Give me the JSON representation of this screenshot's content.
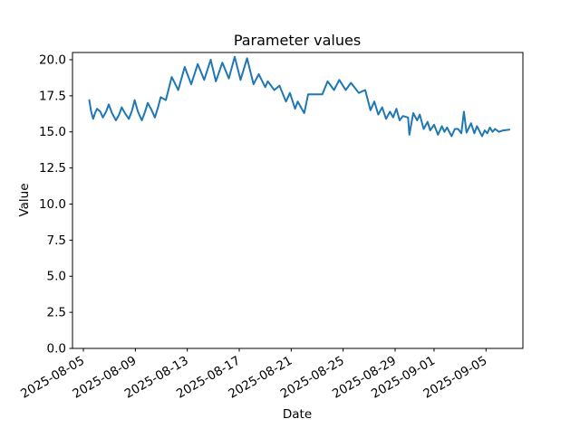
{
  "chart": {
    "title": "Parameter values",
    "xlabel": "Date",
    "ylabel": "Value"
  },
  "chart_data": {
    "type": "line",
    "title": "Parameter values",
    "xlabel": "Date",
    "ylabel": "Value",
    "legend": "none",
    "grid": false,
    "line_color": "#1f77b4",
    "x_unit": "days since 2025-08-05",
    "xlim_days": [
      -0.84,
      33.84
    ],
    "ylim": [
      0,
      20.5
    ],
    "x_ticks": [
      {
        "t": 0,
        "label": "2025-08-05"
      },
      {
        "t": 4,
        "label": "2025-08-09"
      },
      {
        "t": 8,
        "label": "2025-08-13"
      },
      {
        "t": 12,
        "label": "2025-08-17"
      },
      {
        "t": 16,
        "label": "2025-08-21"
      },
      {
        "t": 20,
        "label": "2025-08-25"
      },
      {
        "t": 24,
        "label": "2025-08-29"
      },
      {
        "t": 27,
        "label": "2025-09-01"
      },
      {
        "t": 31,
        "label": "2025-09-05"
      }
    ],
    "y_ticks": [
      {
        "v": 0,
        "label": "0.0"
      },
      {
        "v": 2.5,
        "label": "2.5"
      },
      {
        "v": 5,
        "label": "5.0"
      },
      {
        "v": 7.5,
        "label": "7.5"
      },
      {
        "v": 10,
        "label": "10.0"
      },
      {
        "v": 12.5,
        "label": "12.5"
      },
      {
        "v": 15,
        "label": "15.0"
      },
      {
        "v": 17.5,
        "label": "17.5"
      },
      {
        "v": 20,
        "label": "20.0"
      }
    ],
    "points": [
      [
        0.45,
        17.2
      ],
      [
        0.6,
        16.4
      ],
      [
        0.75,
        15.9
      ],
      [
        0.9,
        16.3
      ],
      [
        1.05,
        16.6
      ],
      [
        1.3,
        16.4
      ],
      [
        1.5,
        16.0
      ],
      [
        1.75,
        16.4
      ],
      [
        1.95,
        16.9
      ],
      [
        2.2,
        16.3
      ],
      [
        2.5,
        15.8
      ],
      [
        2.75,
        16.2
      ],
      [
        2.95,
        16.7
      ],
      [
        3.2,
        16.3
      ],
      [
        3.5,
        15.9
      ],
      [
        3.75,
        16.5
      ],
      [
        3.95,
        17.2
      ],
      [
        4.2,
        16.4
      ],
      [
        4.5,
        15.8
      ],
      [
        4.75,
        16.4
      ],
      [
        4.95,
        17.0
      ],
      [
        5.2,
        16.6
      ],
      [
        5.5,
        16.0
      ],
      [
        5.75,
        16.7
      ],
      [
        5.95,
        17.4
      ],
      [
        6.35,
        17.2
      ],
      [
        6.8,
        18.8
      ],
      [
        7.3,
        17.9
      ],
      [
        7.8,
        19.5
      ],
      [
        8.3,
        18.3
      ],
      [
        8.8,
        19.7
      ],
      [
        9.3,
        18.6
      ],
      [
        9.8,
        20.0
      ],
      [
        10.2,
        18.5
      ],
      [
        10.7,
        19.8
      ],
      [
        11.2,
        18.7
      ],
      [
        11.65,
        20.2
      ],
      [
        12.1,
        18.6
      ],
      [
        12.6,
        20.1
      ],
      [
        13.1,
        18.3
      ],
      [
        13.5,
        19.0
      ],
      [
        14.0,
        18.1
      ],
      [
        14.2,
        18.5
      ],
      [
        14.7,
        17.9
      ],
      [
        15.1,
        18.2
      ],
      [
        15.6,
        17.1
      ],
      [
        15.9,
        17.7
      ],
      [
        16.3,
        16.6
      ],
      [
        16.5,
        17.1
      ],
      [
        17.0,
        16.3
      ],
      [
        17.3,
        17.6
      ],
      [
        18.4,
        17.6
      ],
      [
        18.8,
        18.5
      ],
      [
        19.3,
        17.9
      ],
      [
        19.7,
        18.6
      ],
      [
        20.2,
        17.9
      ],
      [
        20.6,
        18.4
      ],
      [
        21.2,
        17.7
      ],
      [
        21.7,
        17.9
      ],
      [
        22.1,
        16.5
      ],
      [
        22.4,
        17.1
      ],
      [
        22.7,
        16.2
      ],
      [
        23.0,
        16.7
      ],
      [
        23.3,
        15.9
      ],
      [
        23.6,
        16.4
      ],
      [
        23.85,
        16.0
      ],
      [
        24.1,
        16.6
      ],
      [
        24.35,
        15.8
      ],
      [
        24.6,
        16.1
      ],
      [
        25.0,
        16.0
      ],
      [
        25.1,
        14.8
      ],
      [
        25.4,
        16.3
      ],
      [
        25.7,
        15.8
      ],
      [
        25.9,
        16.2
      ],
      [
        26.2,
        15.2
      ],
      [
        26.5,
        15.7
      ],
      [
        26.7,
        15.1
      ],
      [
        27.0,
        15.5
      ],
      [
        27.3,
        14.8
      ],
      [
        27.6,
        15.4
      ],
      [
        27.8,
        15.0
      ],
      [
        28.0,
        15.3
      ],
      [
        28.35,
        14.7
      ],
      [
        28.6,
        15.2
      ],
      [
        28.85,
        15.2
      ],
      [
        29.1,
        14.9
      ],
      [
        29.3,
        16.4
      ],
      [
        29.5,
        14.95
      ],
      [
        29.85,
        15.6
      ],
      [
        30.1,
        14.9
      ],
      [
        30.3,
        15.4
      ],
      [
        30.7,
        14.7
      ],
      [
        30.9,
        15.1
      ],
      [
        31.1,
        14.9
      ],
      [
        31.3,
        15.3
      ],
      [
        31.5,
        15.0
      ],
      [
        31.7,
        15.2
      ],
      [
        32.0,
        15.0
      ],
      [
        32.3,
        15.1
      ],
      [
        32.8,
        15.15
      ]
    ]
  }
}
